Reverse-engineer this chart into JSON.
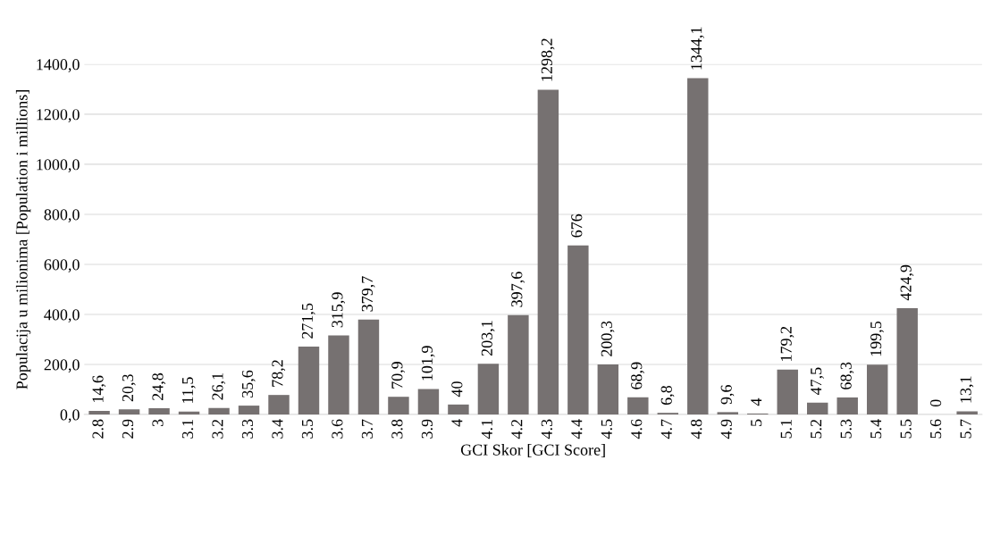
{
  "chart_data": {
    "type": "bar",
    "xlabel": "GCI Skor [GCI Score]",
    "ylabel": "Populacija u milionima [Population i millions]",
    "categories": [
      "2.8",
      "2.9",
      "3",
      "3.1",
      "3.2",
      "3.3",
      "3.4",
      "3.5",
      "3.6",
      "3.7",
      "3.8",
      "3.9",
      "4",
      "4.1",
      "4.2",
      "4.3",
      "4.4",
      "4.5",
      "4.6",
      "4.7",
      "4.8",
      "4.9",
      "5",
      "5.1",
      "5.2",
      "5.3",
      "5.4",
      "5.5",
      "5.6",
      "5.7"
    ],
    "values": [
      14.6,
      20.3,
      24.8,
      11.5,
      26.1,
      35.6,
      78.2,
      271.5,
      315.9,
      379.7,
      70.9,
      101.9,
      40,
      203.1,
      397.6,
      1298.2,
      676,
      200.3,
      68.9,
      6.8,
      1344.1,
      9.6,
      4,
      179.2,
      47.5,
      68.3,
      199.5,
      424.9,
      0,
      13.1
    ],
    "value_labels": [
      "14,6",
      "20,3",
      "24,8",
      "11,5",
      "26,1",
      "35,6",
      "78,2",
      "271,5",
      "315,9",
      "379,7",
      "70,9",
      "101,9",
      "40",
      "203,1",
      "397,6",
      "1298,2",
      "676",
      "200,3",
      "68,9",
      "6,8",
      "1344,1",
      "9,6",
      "4",
      "179,2",
      "47,5",
      "68,3",
      "199,5",
      "424,9",
      "0",
      "13,1"
    ],
    "color": "#767171",
    "ylim": [
      0,
      1400
    ],
    "yticks": [
      {
        "value": 0,
        "label": "0,0"
      },
      {
        "value": 200,
        "label": "200,0"
      },
      {
        "value": 400,
        "label": "400,0"
      },
      {
        "value": 600,
        "label": "600,0"
      },
      {
        "value": 800,
        "label": "800,0"
      },
      {
        "value": 1000,
        "label": "1000,0"
      },
      {
        "value": 1200,
        "label": "1200,0"
      },
      {
        "value": 1400,
        "label": "1400,0"
      }
    ],
    "grid": "y",
    "legend": false
  }
}
